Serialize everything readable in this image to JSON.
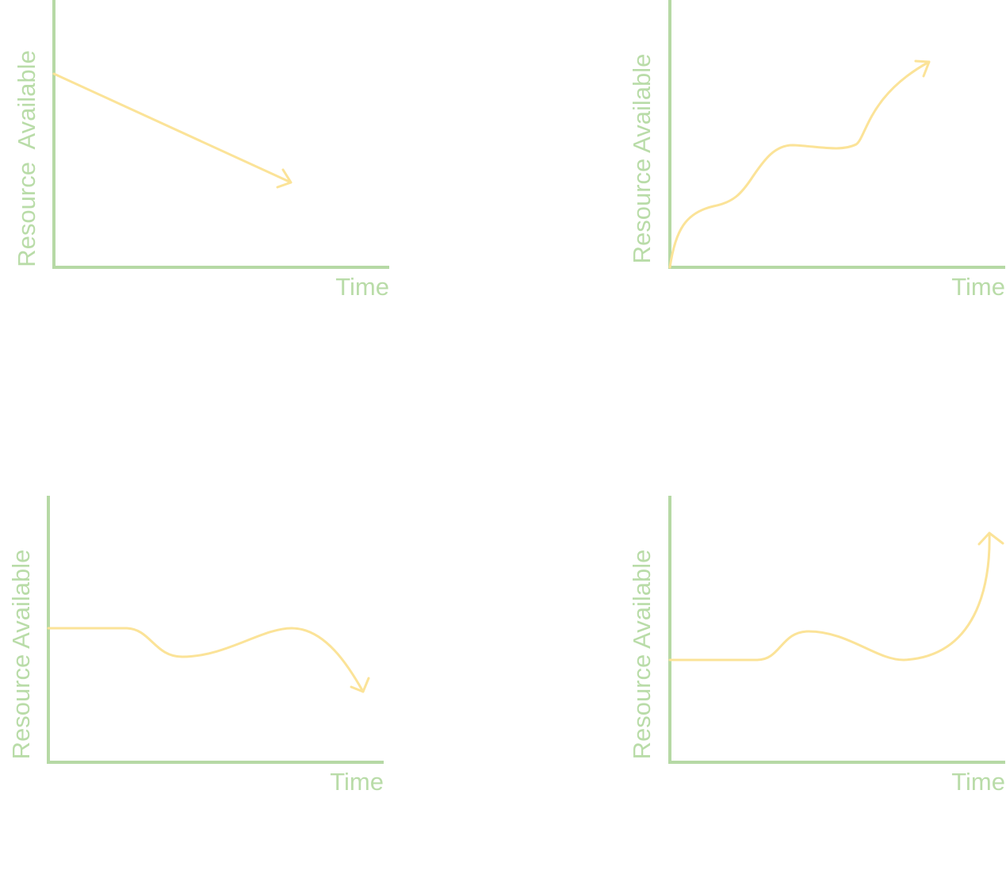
{
  "panels": [
    {
      "y_label": "Resource  Available",
      "x_label": "Time"
    },
    {
      "y_label": "Resource Available",
      "x_label": "Time"
    },
    {
      "y_label": "Resource Available",
      "x_label": "Time"
    },
    {
      "y_label": "Resource Available",
      "x_label": "Time"
    }
  ]
}
